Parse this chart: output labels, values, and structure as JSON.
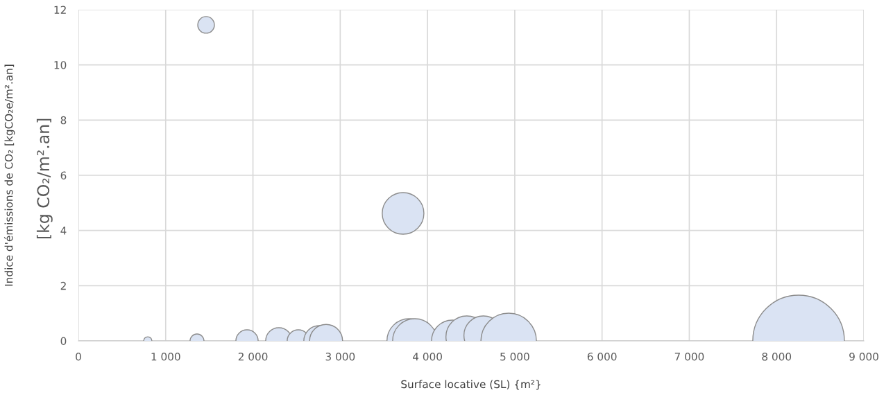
{
  "chart_data": {
    "type": "bubble",
    "xlabel": "Surface locative (SL) {m²}",
    "ylabel": "Indice d'émissions de CO₂ [kgCO₂e/m².an]",
    "annotations": [
      "[kg CO₂/m².an]"
    ],
    "x": [
      795,
      1359,
      1463,
      1932,
      2297,
      2520,
      2758,
      2838,
      3720,
      3790,
      3855,
      4285,
      4450,
      4640,
      4930,
      8252
    ],
    "values": [
      0,
      0,
      11.45,
      0,
      0,
      0,
      0,
      0,
      4.62,
      0,
      0,
      0,
      0.15,
      0.2,
      0,
      0
    ],
    "sizes": [
      0.008,
      0.023,
      0.033,
      0.059,
      0.083,
      0.059,
      0.111,
      0.13,
      0.207,
      0.235,
      0.235,
      0.207,
      0.207,
      0.18,
      0.367,
      1
    ],
    "color": "#dae3f3",
    "xlim": [
      0,
      9000
    ],
    "xticks": [
      0,
      {
        "value": 1000,
        "label": "1 000"
      },
      {
        "value": 2000,
        "label": "2 000"
      },
      {
        "value": 3000,
        "label": "3 000"
      },
      {
        "value": 4000,
        "label": "4 000"
      },
      {
        "value": 5000,
        "label": "5 000"
      },
      {
        "value": 6000,
        "label": "6 000"
      },
      {
        "value": 7000,
        "label": "7 000"
      },
      {
        "value": 8000,
        "label": "8 000"
      },
      {
        "value": 9000,
        "label": "9 000"
      }
    ],
    "ylim": [
      0,
      12
    ],
    "yticks": [
      0,
      2,
      4,
      6,
      8,
      10,
      12
    ],
    "grid": true
  }
}
